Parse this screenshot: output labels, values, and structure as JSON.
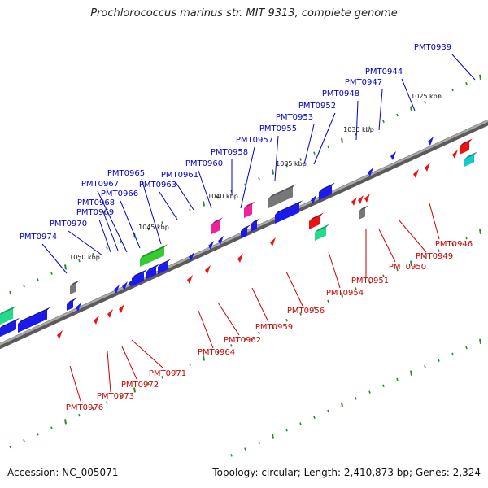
{
  "title": "Prochlorococcus marinus str. MIT 9313, complete genome",
  "footer": {
    "accession": "Accession: NC_005071",
    "stats": "Topology: circular; Length: 2,410,873 bp; Genes: 2,324"
  },
  "colors": {
    "backbone": "#888888",
    "tick": "#2a8a2a",
    "label_top": "#0000cc",
    "label_bottom": "#cc0000",
    "gene_blue": "#1a1aee",
    "gene_red": "#ee1111",
    "gene_green": "#33cc33",
    "gene_gray": "#777777",
    "gene_magenta": "#ee2299",
    "gene_teal": "#11cccc",
    "gene_mint": "#22dd88"
  },
  "scale_labels": [
    "1025 kbp",
    "1030 kbp",
    "1035 kbp",
    "1040 kbp",
    "1045 kbp",
    "1050 kbp"
  ],
  "genes_top": [
    {
      "label": "PMT0939"
    },
    {
      "label": "PMT0944"
    },
    {
      "label": "PMT0947"
    },
    {
      "label": "PMT0948"
    },
    {
      "label": "PMT0952"
    },
    {
      "label": "PMT0953"
    },
    {
      "label": "PMT0955"
    },
    {
      "label": "PMT0957"
    },
    {
      "label": "PMT0958"
    },
    {
      "label": "PMT0960"
    },
    {
      "label": "PMT0961"
    },
    {
      "label": "PMT0963"
    },
    {
      "label": "PMT0965"
    },
    {
      "label": "PMT0966"
    },
    {
      "label": "PMT0967"
    },
    {
      "label": "PMT0968"
    },
    {
      "label": "PMT0969"
    },
    {
      "label": "PMT0970"
    },
    {
      "label": "PMT0974"
    }
  ],
  "genes_bottom": [
    {
      "label": "PMT0946"
    },
    {
      "label": "PMT0949"
    },
    {
      "label": "PMT0950"
    },
    {
      "label": "PMT0951"
    },
    {
      "label": "PMT0954"
    },
    {
      "label": "PMT0956"
    },
    {
      "label": "PMT0959"
    },
    {
      "label": "PMT0962"
    },
    {
      "label": "PMT0964"
    },
    {
      "label": "PMT0971"
    },
    {
      "label": "PMT0972"
    },
    {
      "label": "PMT0973"
    },
    {
      "label": "PMT0976"
    }
  ]
}
